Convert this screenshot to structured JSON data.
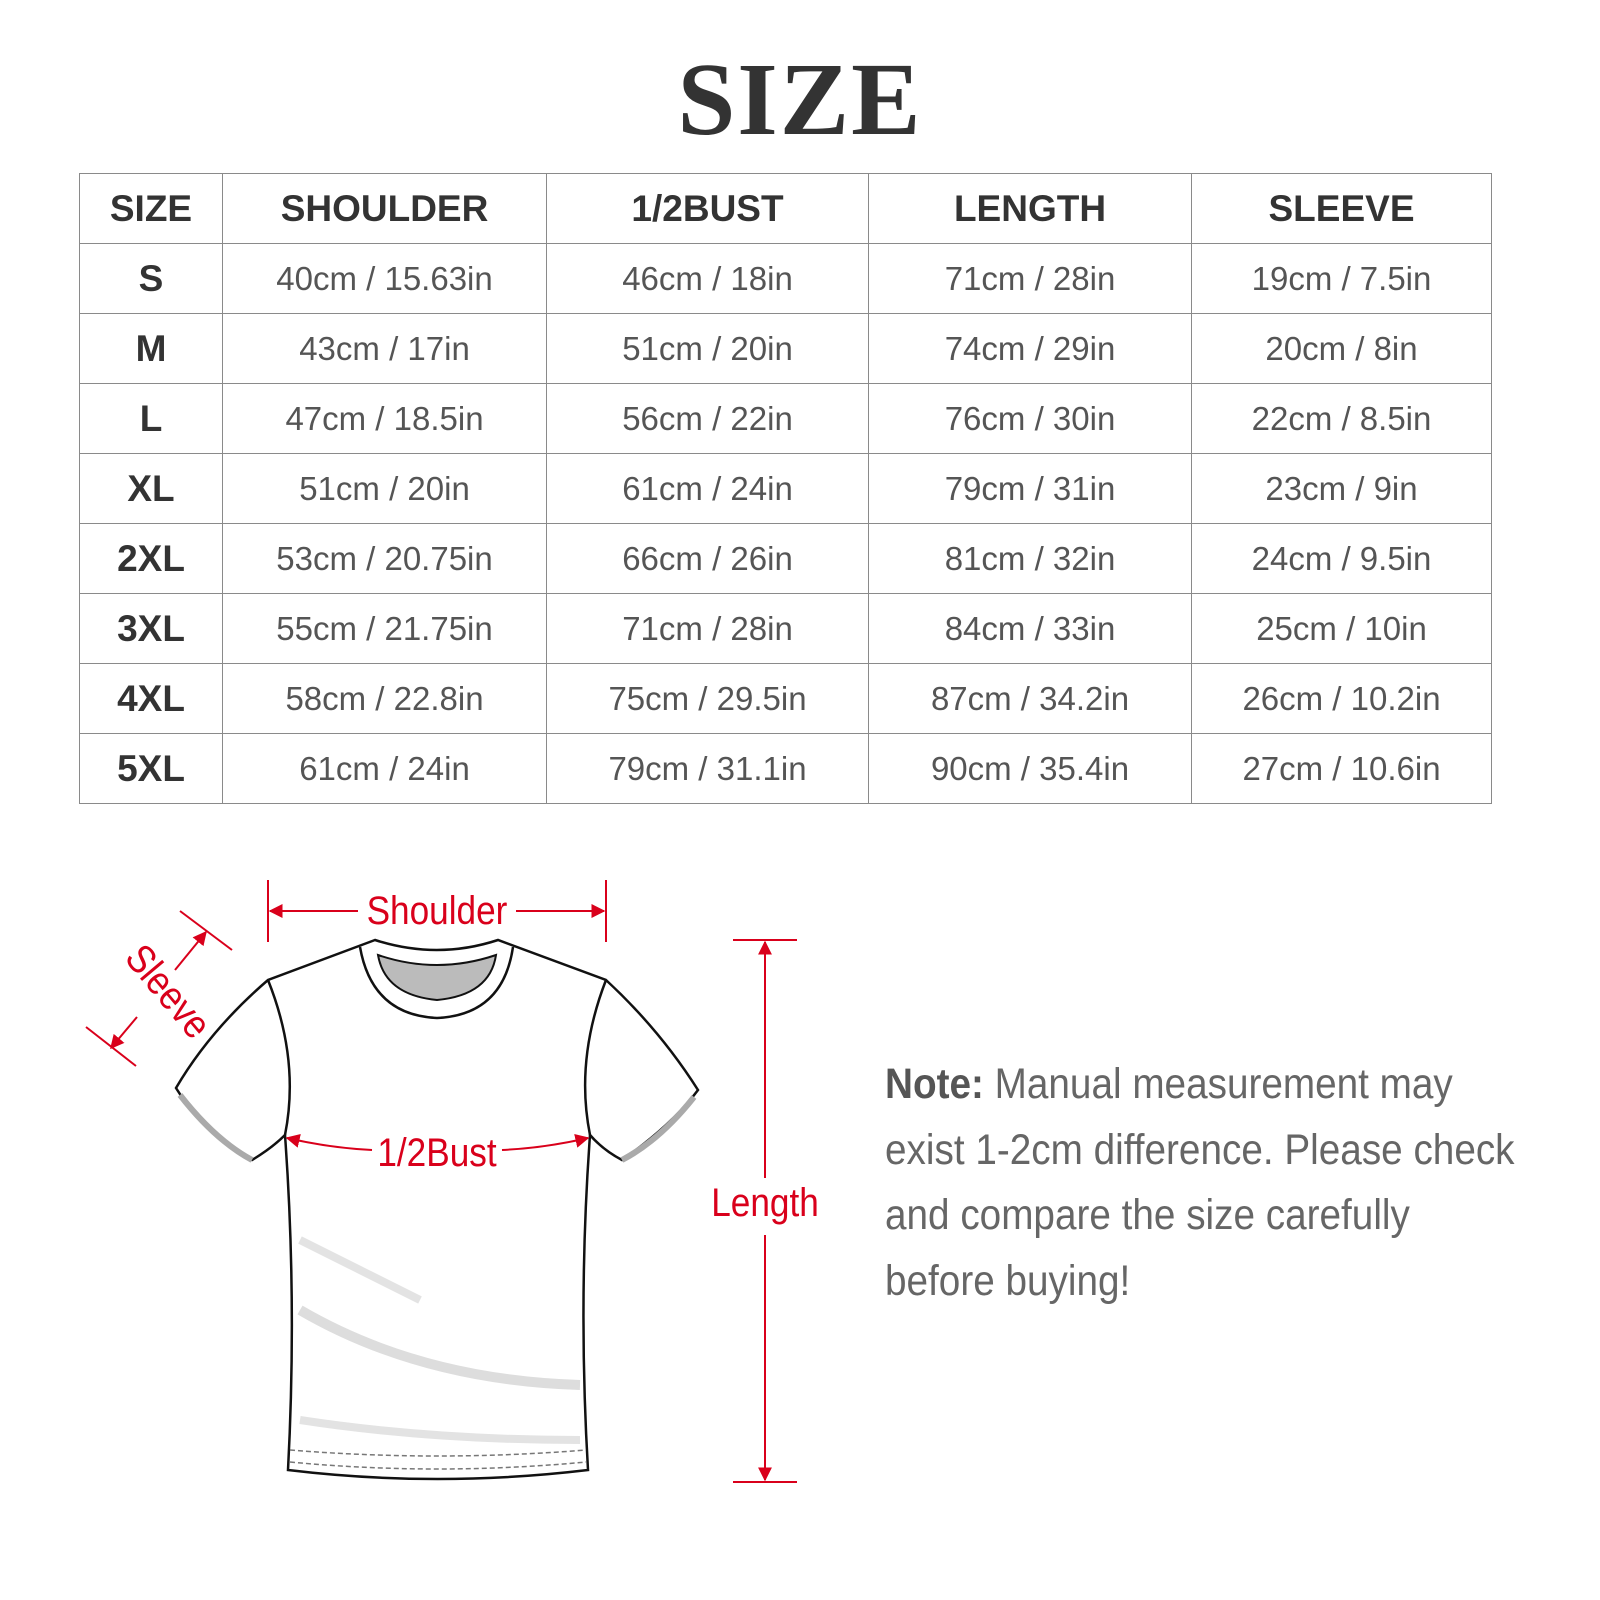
{
  "title": "SIZE",
  "table": {
    "headers": [
      "SIZE",
      "SHOULDER",
      "1/2BUST",
      "LENGTH",
      "SLEEVE"
    ],
    "rows": [
      [
        "S",
        "40cm / 15.63in",
        "46cm / 18in",
        "71cm / 28in",
        "19cm / 7.5in"
      ],
      [
        "M",
        "43cm / 17in",
        "51cm / 20in",
        "74cm / 29in",
        "20cm / 8in"
      ],
      [
        "L",
        "47cm / 18.5in",
        "56cm / 22in",
        "76cm / 30in",
        "22cm / 8.5in"
      ],
      [
        "XL",
        "51cm / 20in",
        "61cm / 24in",
        "79cm / 31in",
        "23cm / 9in"
      ],
      [
        "2XL",
        "53cm / 20.75in",
        "66cm / 26in",
        "81cm / 32in",
        "24cm / 9.5in"
      ],
      [
        "3XL",
        "55cm / 21.75in",
        "71cm / 28in",
        "84cm / 33in",
        "25cm / 10in"
      ],
      [
        "4XL",
        "58cm / 22.8in",
        "75cm / 29.5in",
        "87cm / 34.2in",
        "26cm / 10.2in"
      ],
      [
        "5XL",
        "61cm / 24in",
        "79cm / 31.1in",
        "90cm / 35.4in",
        "27cm / 10.6in"
      ]
    ]
  },
  "diagram": {
    "shoulder": "Shoulder",
    "sleeve": "Sleeve",
    "bust": "1/2Bust",
    "length": "Length",
    "accent_color": "#d9001b"
  },
  "note": {
    "label": "Note:",
    "text": " Manual measurement may exist 1-2cm difference. Please check and compare the size carefully before buying!"
  }
}
